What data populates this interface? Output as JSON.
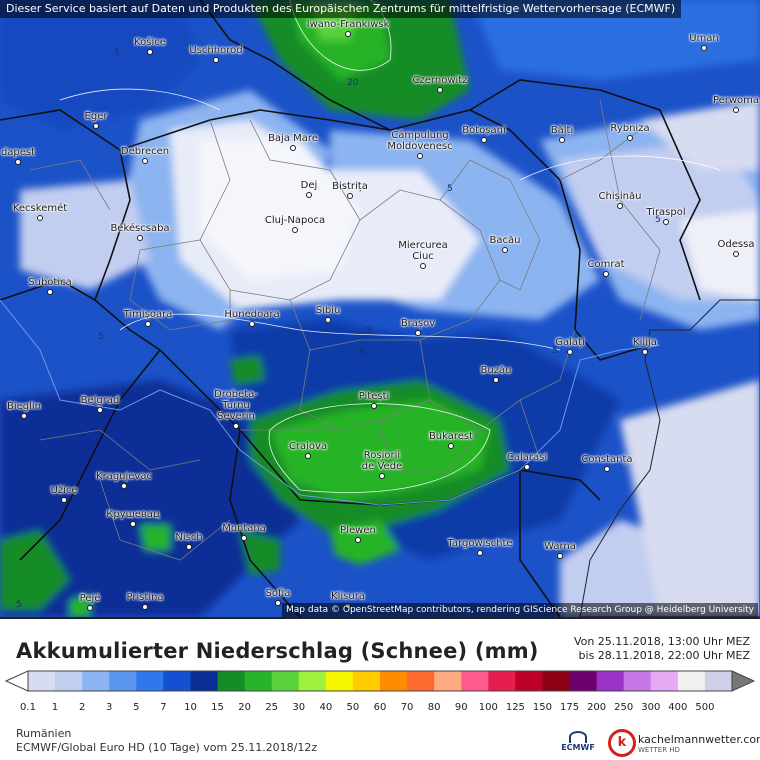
{
  "banner": "Dieser Service basiert auf Daten und Produkten des Europäischen Zentrums für mittelfristige Wettervorhersage (ECMWF)",
  "attribution": "Map data © OpenStreetMap contributors, rendering GIScience Research Group @ Heidelberg University",
  "title": "Akkumulierter Niederschlag (Schnee) (mm)",
  "period_from": "Von 25.11.2018, 13:00 Uhr MEZ",
  "period_to": "bis 28.11.2018, 22:00 Uhr MEZ",
  "region": "Rumänien",
  "model": "ECMWF/Global Euro HD (10 Tage) vom 25.11.2018/12z",
  "ecmwf_logo_text": "ECMWF",
  "km_logo_letter": "k",
  "km_name": "kachelmannwetter.com",
  "km_sub": "WETTER HD",
  "colorbar": {
    "ticks": [
      "0.1",
      "1",
      "2",
      "3",
      "5",
      "7",
      "10",
      "15",
      "20",
      "25",
      "30",
      "40",
      "50",
      "60",
      "70",
      "80",
      "90",
      "100",
      "125",
      "150",
      "175",
      "200",
      "250",
      "300",
      "400",
      "500"
    ],
    "colors": [
      "#d8dcf0",
      "#c2cef0",
      "#8cb4f0",
      "#5a96f0",
      "#2e78ec",
      "#1450d0",
      "#0a2e96",
      "#148c28",
      "#28b428",
      "#5ad23c",
      "#a0f040",
      "#f5f500",
      "#ffcc00",
      "#ff8c00",
      "#ff6a30",
      "#ffaa80",
      "#ff5a8c",
      "#e61e50",
      "#be0028",
      "#8c0014",
      "#6e006e",
      "#9b32c8",
      "#c878e6",
      "#e6aaf5",
      "#f0f0f0",
      "#d0d0e8"
    ]
  },
  "cities": [
    {
      "name": "Košice"
    },
    {
      "name": "Uschhorod"
    },
    {
      "name": "Iwano-Frankiwsk"
    },
    {
      "name": "Uman"
    },
    {
      "name": "Czernowitz"
    },
    {
      "name": "Perwoma"
    },
    {
      "name": "Eger"
    },
    {
      "name": "Baja Mare"
    },
    {
      "name": "Câmpulung Moldovenesc"
    },
    {
      "name": "Botoșani"
    },
    {
      "name": "Bălți"
    },
    {
      "name": "Rybniza"
    },
    {
      "name": "dapest"
    },
    {
      "name": "Debrecen"
    },
    {
      "name": "Dej"
    },
    {
      "name": "Bistrița"
    },
    {
      "name": "Chișinău"
    },
    {
      "name": "Kecskemét"
    },
    {
      "name": "Cluj-Napoca"
    },
    {
      "name": "Tiraspol"
    },
    {
      "name": "Békéscsaba"
    },
    {
      "name": "Miercurea Ciuc"
    },
    {
      "name": "Bacău"
    },
    {
      "name": "Odessa"
    },
    {
      "name": "Comrat"
    },
    {
      "name": "Subotica"
    },
    {
      "name": "Timișoara"
    },
    {
      "name": "Hunedoara"
    },
    {
      "name": "Sibiu"
    },
    {
      "name": "Brașov"
    },
    {
      "name": "Galați"
    },
    {
      "name": "Kilija"
    },
    {
      "name": "Buzău"
    },
    {
      "name": "Bieglin"
    },
    {
      "name": "Belgrad"
    },
    {
      "name": "Drobeta-Turnu Severin"
    },
    {
      "name": "Pitești"
    },
    {
      "name": "Craiova"
    },
    {
      "name": "Roșiorii de Vede"
    },
    {
      "name": "Bukarest"
    },
    {
      "name": "Calarasi"
    },
    {
      "name": "Constanța"
    },
    {
      "name": "Kragujevac"
    },
    {
      "name": "Užice"
    },
    {
      "name": "Крушевац"
    },
    {
      "name": "Nisch"
    },
    {
      "name": "Montana"
    },
    {
      "name": "Plewen"
    },
    {
      "name": "Targowischte"
    },
    {
      "name": "Warna"
    },
    {
      "name": "Pejë"
    },
    {
      "name": "Pristina"
    },
    {
      "name": "Sofia"
    },
    {
      "name": "Klisura"
    }
  ],
  "isolines": [
    "5",
    "5",
    "5",
    "5",
    "5",
    "5",
    "5",
    "5",
    "20"
  ]
}
